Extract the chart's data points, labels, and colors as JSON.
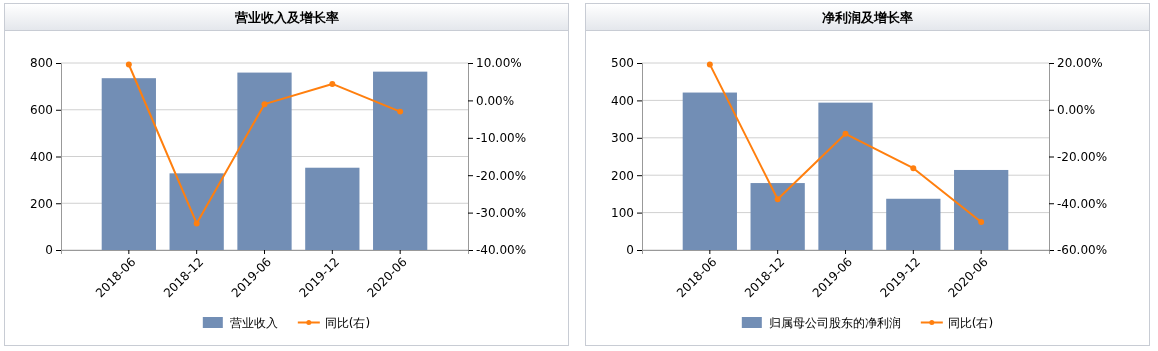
{
  "chart_data": [
    {
      "type": "bar",
      "title": "营业收入及增长率",
      "categories": [
        "2018-06",
        "2018-12",
        "2019-06",
        "2019-12",
        "2020-06"
      ],
      "series": [
        {
          "name": "营业收入",
          "color": "#728eb5",
          "values": [
            735,
            328,
            759,
            352,
            763
          ]
        },
        {
          "name": "同比(右)",
          "type": "line",
          "axis": "y2",
          "color": "#ff7f0e",
          "values": [
            9.6,
            -32.9,
            -1.0,
            4.4,
            -3.0
          ]
        }
      ],
      "ylim": [
        0,
        800
      ],
      "yticks": [
        0,
        200,
        400,
        600,
        800
      ],
      "y2lim": [
        -40,
        10
      ],
      "y2ticks": [
        {
          "value": -40,
          "label": "-40.00%"
        },
        {
          "value": -30,
          "label": "-30.00%"
        },
        {
          "value": -20,
          "label": "-20.00%"
        },
        {
          "value": -10,
          "label": "-10.00%"
        },
        {
          "value": 0,
          "label": "0.00%"
        },
        {
          "value": 10,
          "label": "10.00%"
        }
      ],
      "grid": "y",
      "legend": "bottom",
      "marker": "circle"
    },
    {
      "type": "bar",
      "title": "净利润及增长率",
      "categories": [
        "2018-06",
        "2018-12",
        "2019-06",
        "2019-12",
        "2020-06"
      ],
      "series": [
        {
          "name": "归属母公司股东的净利润",
          "color": "#728eb5",
          "values": [
            421,
            179,
            394,
            137,
            214
          ]
        },
        {
          "name": "同比(右)",
          "type": "line",
          "axis": "y2",
          "color": "#ff7f0e",
          "values": [
            19.4,
            -38.3,
            -10.3,
            -25.0,
            -48.0
          ]
        }
      ],
      "ylim": [
        0,
        500
      ],
      "yticks": [
        0,
        100,
        200,
        300,
        400,
        500
      ],
      "y2lim": [
        -60,
        20
      ],
      "y2ticks": [
        {
          "value": -60,
          "label": "-60.00%"
        },
        {
          "value": -40,
          "label": "-40.00%"
        },
        {
          "value": -20,
          "label": "-20.00%"
        },
        {
          "value": 0,
          "label": "0.00%"
        },
        {
          "value": 20,
          "label": "20.00%"
        }
      ],
      "grid": "y",
      "legend": "bottom",
      "marker": "circle"
    }
  ]
}
